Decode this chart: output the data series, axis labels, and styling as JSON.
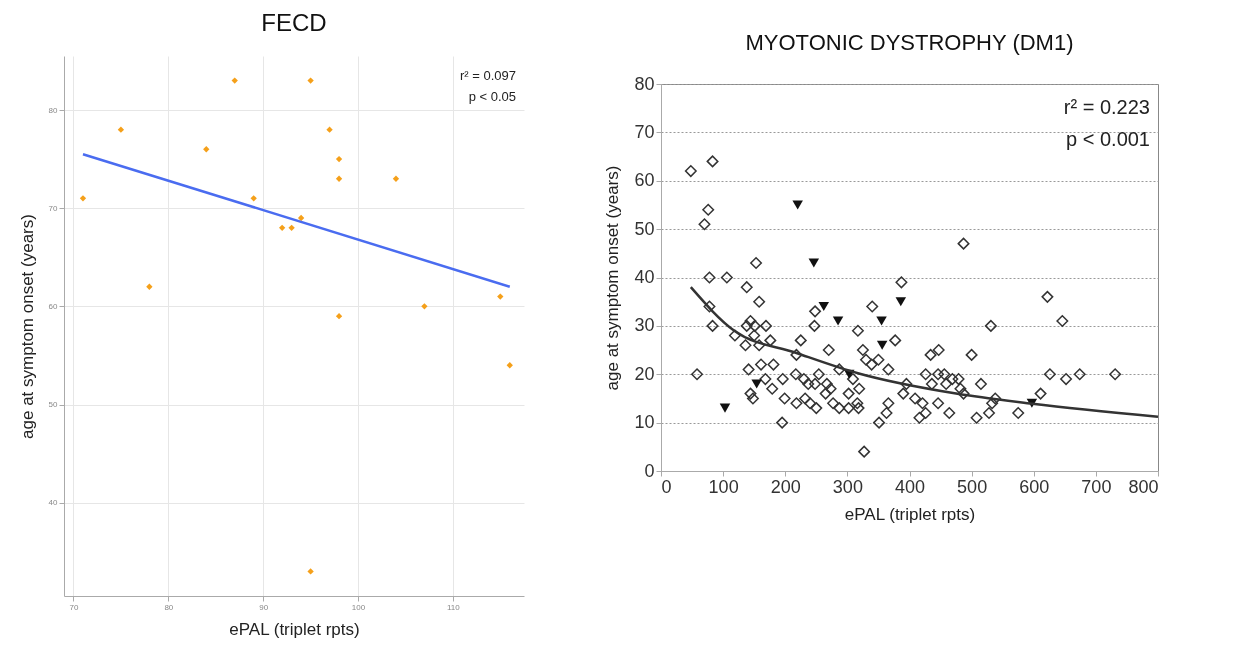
{
  "chart_data": [
    {
      "type": "scatter",
      "title": "FECD",
      "xlabel": "ePAL (triplet rpts)",
      "ylabel": "age at symptom onset  (years)",
      "xlim": [
        69,
        117.5
      ],
      "ylim": [
        30.5,
        85.5
      ],
      "xticks": [
        70,
        80,
        90,
        100,
        110
      ],
      "yticks": [
        40,
        50,
        60,
        70,
        80
      ],
      "grid": true,
      "annotations": [
        "r² = 0.097",
        "p < 0.05"
      ],
      "series": [
        {
          "type": "scatter",
          "marker": "diamond",
          "color": "#f5a01a",
          "x": [
            71,
            75,
            78,
            84,
            87,
            89,
            92,
            93,
            94,
            95,
            95,
            97,
            98,
            98,
            98,
            104,
            107,
            115,
            116
          ],
          "values": [
            71,
            78,
            62,
            76,
            83,
            71,
            68,
            68,
            69,
            83,
            33,
            78,
            75,
            73,
            59,
            73,
            60,
            61,
            54
          ]
        },
        {
          "type": "line",
          "color": "#4a6cf0",
          "x": [
            71,
            116
          ],
          "values": [
            75.5,
            62
          ]
        }
      ]
    },
    {
      "type": "scatter",
      "title": "MYOTONIC DYSTROPHY (DM1)",
      "xlabel": "ePAL (triplet rpts)",
      "ylabel": "age at symptom onset (years)",
      "xlim": [
        0,
        800
      ],
      "ylim": [
        0,
        80
      ],
      "xticks": [
        0,
        100,
        200,
        300,
        400,
        500,
        600,
        700,
        800
      ],
      "yticks": [
        0,
        10,
        20,
        30,
        40,
        50,
        60,
        70,
        80
      ],
      "grid": "y",
      "annotations": [
        "r² = 0.223",
        "p < 0.001"
      ],
      "series": [
        {
          "type": "scatter",
          "marker": "diamond",
          "color": "#333333",
          "x": [
            48,
            83,
            58,
            76,
            70,
            78,
            78,
            83,
            106,
            119,
            138,
            138,
            144,
            136,
            151,
            141,
            148,
            144,
            153,
            158,
            158,
            150,
            161,
            169,
            176,
            168,
            181,
            179,
            196,
            199,
            195,
            218,
            225,
            217,
            218,
            230,
            237,
            232,
            240,
            248,
            247,
            254,
            250,
            248,
            270,
            267,
            273,
            265,
            277,
            287,
            287,
            302,
            302,
            309,
            317,
            325,
            330,
            319,
            316,
            318,
            327,
            340,
            339,
            350,
            351,
            366,
            366,
            363,
            377,
            387,
            395,
            390,
            409,
            416,
            421,
            426,
            426,
            434,
            436,
            447,
            446,
            446,
            456,
            459,
            464,
            469,
            479,
            482,
            487,
            487,
            500,
            508,
            515,
            528,
            531,
            533,
            538,
            575,
            611,
            622,
            626,
            646,
            652,
            674,
            731
          ],
          "values": [
            62,
            64,
            20,
            54,
            51,
            40,
            34,
            30,
            40,
            28,
            38,
            30,
            31,
            26,
            30,
            21,
            15,
            16,
            43,
            35,
            26,
            28,
            22,
            30,
            27,
            19,
            22,
            17,
            19,
            15,
            10,
            24,
            27,
            20,
            14,
            19,
            18,
            15,
            14,
            33,
            30,
            20,
            13,
            18,
            25,
            18,
            17,
            16,
            14,
            13,
            21,
            16,
            13,
            19,
            29,
            25,
            23,
            17,
            14,
            13,
            4,
            34,
            22,
            23,
            10,
            21,
            14,
            12,
            27,
            39,
            18,
            16,
            15,
            11,
            14,
            12,
            20,
            24,
            18,
            25,
            20,
            14,
            20,
            18,
            12,
            19,
            19,
            17,
            16,
            47,
            24,
            11,
            18,
            12,
            30,
            14,
            15,
            12,
            16,
            36,
            20,
            31,
            19,
            20,
            20
          ]
        },
        {
          "type": "scatter",
          "marker": "triangle",
          "color": "#111111",
          "x": [
            220,
            246,
            262,
            285,
            355,
            356,
            386,
            103,
            154,
            303,
            597
          ],
          "values": [
            55,
            43,
            34,
            31,
            31,
            26,
            35,
            13,
            18,
            20,
            14
          ]
        },
        {
          "type": "line",
          "color": "#333333",
          "x": [
            48,
            118,
            218,
            317,
            475,
            598,
            800
          ],
          "values": [
            38,
            29,
            24.4,
            20.2,
            16,
            13.9,
            11.2
          ]
        }
      ]
    }
  ]
}
